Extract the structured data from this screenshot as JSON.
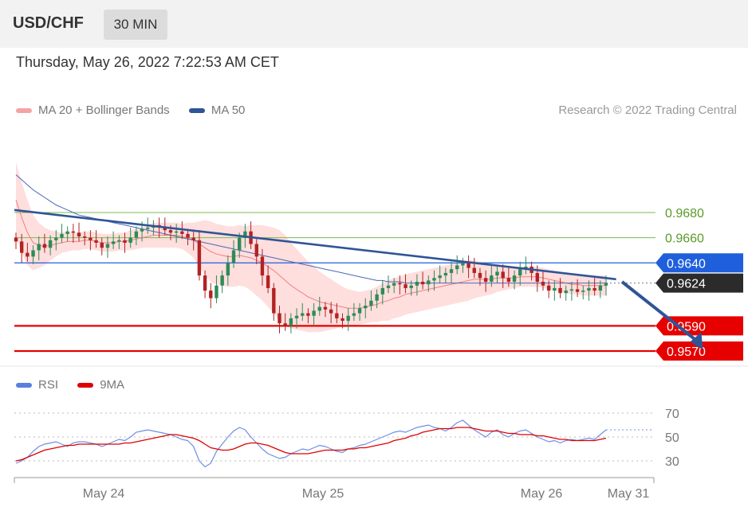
{
  "header": {
    "symbol": "USD/CHF",
    "timeframe": "30 MIN",
    "datetime": "Thursday, May 26, 2022 7:22:53 AM CET"
  },
  "price_legend": [
    {
      "label": "MA 20 + Bollinger Bands",
      "color": "#f08080"
    },
    {
      "label": "MA 50",
      "color": "#2f5597"
    }
  ],
  "rsi_legend": [
    {
      "label": "RSI",
      "color": "#5b7fde"
    },
    {
      "label": "9MA",
      "color": "#e00000"
    }
  ],
  "copyright": "Research © 2022 Trading Central",
  "colors": {
    "up": "#2e8b57",
    "down": "#b22222",
    "resistance": "#7cbb4b",
    "pivot": "#1f5fdc",
    "support": "#e60000",
    "trend": "#2f5597",
    "current": "#2b2b2b",
    "band": "#ffdede"
  },
  "chart_data": [
    {
      "type": "candlestick",
      "ylim": [
        0.9565,
        0.971
      ],
      "x_ticks": [
        "May 24",
        "May 25",
        "May 26",
        "May 31"
      ],
      "levels": [
        {
          "value": 0.968,
          "label": "0.9680",
          "kind": "resistance"
        },
        {
          "value": 0.966,
          "label": "0.9660",
          "kind": "resistance"
        },
        {
          "value": 0.964,
          "label": "0.9640",
          "kind": "pivot"
        },
        {
          "value": 0.9624,
          "label": "0.9624",
          "kind": "current"
        },
        {
          "value": 0.959,
          "label": "0.9590",
          "kind": "support"
        },
        {
          "value": 0.957,
          "label": "0.9570",
          "kind": "support"
        }
      ],
      "trendline": {
        "from": [
          0,
          0.9682
        ],
        "to": [
          101,
          0.9627
        ]
      },
      "forecast_arrow": {
        "from": [
          103,
          0.9625
        ],
        "to": [
          116,
          0.9571
        ]
      },
      "closes": [
        0.9657,
        0.9648,
        0.9645,
        0.965,
        0.9655,
        0.9652,
        0.9658,
        0.966,
        0.9663,
        0.9665,
        0.9664,
        0.9661,
        0.966,
        0.9658,
        0.9656,
        0.9652,
        0.9655,
        0.9657,
        0.9658,
        0.9656,
        0.966,
        0.9665,
        0.9667,
        0.9668,
        0.967,
        0.9668,
        0.9666,
        0.9664,
        0.9665,
        0.9663,
        0.966,
        0.9658,
        0.963,
        0.9618,
        0.9612,
        0.9622,
        0.963,
        0.964,
        0.965,
        0.966,
        0.9665,
        0.9655,
        0.9645,
        0.963,
        0.962,
        0.96,
        0.9592,
        0.959,
        0.9596,
        0.9598,
        0.96,
        0.9598,
        0.9602,
        0.9605,
        0.9603,
        0.96,
        0.9596,
        0.9594,
        0.9598,
        0.96,
        0.9604,
        0.9606,
        0.961,
        0.9615,
        0.962,
        0.9622,
        0.9624,
        0.9623,
        0.962,
        0.9622,
        0.9625,
        0.9623,
        0.9626,
        0.9628,
        0.963,
        0.9632,
        0.9635,
        0.9638,
        0.964,
        0.9636,
        0.9632,
        0.9628,
        0.9625,
        0.963,
        0.9633,
        0.9628,
        0.9625,
        0.963,
        0.9635,
        0.9637,
        0.9632,
        0.9625,
        0.9622,
        0.9618,
        0.962,
        0.9616,
        0.9618,
        0.9619,
        0.9617,
        0.9618,
        0.962,
        0.9618,
        0.9622,
        0.9624
      ],
      "ma20": [
        0.969,
        0.9676,
        0.9664,
        0.9656,
        0.9654,
        0.9653,
        0.9654,
        0.9655,
        0.9656,
        0.9657,
        0.9657,
        0.9657,
        0.9658,
        0.9658,
        0.9657,
        0.9656,
        0.9656,
        0.9656,
        0.9657,
        0.9657,
        0.9658,
        0.9659,
        0.966,
        0.9661,
        0.9662,
        0.9662,
        0.9662,
        0.9662,
        0.9662,
        0.9661,
        0.966,
        0.9658,
        0.9655,
        0.9652,
        0.9649,
        0.9647,
        0.9646,
        0.9645,
        0.9645,
        0.9646,
        0.9645,
        0.9644,
        0.9642,
        0.964,
        0.9637,
        0.9634,
        0.963,
        0.9626,
        0.9622,
        0.9619,
        0.9616,
        0.9613,
        0.9611,
        0.9609,
        0.9608,
        0.9607,
        0.9606,
        0.9605,
        0.9604,
        0.9604,
        0.9604,
        0.9605,
        0.9606,
        0.9607,
        0.9609,
        0.961,
        0.9612,
        0.9613,
        0.9615,
        0.9616,
        0.9617,
        0.9618,
        0.9619,
        0.962,
        0.9621,
        0.9622,
        0.9623,
        0.9624,
        0.9625,
        0.9626,
        0.9627,
        0.9627,
        0.9627,
        0.9627,
        0.9628,
        0.9628,
        0.9628,
        0.9628,
        0.9629,
        0.9629,
        0.9629,
        0.9629,
        0.9628,
        0.9627,
        0.9626,
        0.9625,
        0.9624,
        0.9623,
        0.9623,
        0.9622,
        0.9622,
        0.9622,
        0.9622,
        0.9622
      ],
      "ma50": [
        0.971,
        0.9706,
        0.9702,
        0.9698,
        0.9695,
        0.9692,
        0.9689,
        0.9686,
        0.9684,
        0.9682,
        0.968,
        0.9678,
        0.9677,
        0.9676,
        0.9675,
        0.9674,
        0.9673,
        0.9672,
        0.9671,
        0.967,
        0.9669,
        0.9668,
        0.9667,
        0.9666,
        0.9665,
        0.9664,
        0.9663,
        0.9662,
        0.9661,
        0.966,
        0.9659,
        0.9658,
        0.9657,
        0.9656,
        0.9655,
        0.9654,
        0.9653,
        0.9652,
        0.9651,
        0.965,
        0.9649,
        0.9648,
        0.9647,
        0.9646,
        0.9645,
        0.9644,
        0.9643,
        0.9642,
        0.9641,
        0.964,
        0.9639,
        0.9638,
        0.9637,
        0.9636,
        0.9635,
        0.9634,
        0.9633,
        0.9632,
        0.9631,
        0.963,
        0.9629,
        0.9628,
        0.9627,
        0.9626,
        0.9626,
        0.9625,
        0.9625,
        0.9625,
        0.9624,
        0.9624,
        0.9624,
        0.9624,
        0.9624,
        0.9624,
        0.9624,
        0.9624,
        0.9624,
        0.9624,
        0.9624,
        0.9624,
        0.9624,
        0.9624,
        0.9624,
        0.9624,
        0.9624,
        0.9624,
        0.9624,
        0.9624,
        0.9624,
        0.9624,
        0.9624,
        0.9624,
        0.9624,
        0.9624,
        0.9624,
        0.9624,
        0.9624,
        0.9624,
        0.9624,
        0.9624,
        0.9624,
        0.9624,
        0.9624,
        0.9624
      ],
      "band_width": [
        0.003,
        0.0028,
        0.0026,
        0.0022,
        0.0018,
        0.0015,
        0.0012,
        0.001,
        0.0008,
        0.0008,
        0.0007,
        0.0007,
        0.0007,
        0.0007,
        0.0007,
        0.0007,
        0.0007,
        0.0007,
        0.0007,
        0.0007,
        0.0008,
        0.0008,
        0.0008,
        0.0009,
        0.001,
        0.001,
        0.001,
        0.001,
        0.001,
        0.001,
        0.0012,
        0.0014,
        0.0018,
        0.0022,
        0.0024,
        0.0024,
        0.0024,
        0.0024,
        0.0024,
        0.0024,
        0.0024,
        0.0026,
        0.0028,
        0.003,
        0.0032,
        0.0034,
        0.0036,
        0.0036,
        0.0034,
        0.0032,
        0.003,
        0.0028,
        0.0026,
        0.0024,
        0.0022,
        0.002,
        0.0018,
        0.0016,
        0.0015,
        0.0014,
        0.0013,
        0.0013,
        0.0013,
        0.0014,
        0.0015,
        0.0016,
        0.0016,
        0.0016,
        0.0016,
        0.0016,
        0.0016,
        0.0016,
        0.0016,
        0.0016,
        0.0016,
        0.0016,
        0.0016,
        0.0016,
        0.0016,
        0.0016,
        0.0015,
        0.0014,
        0.0013,
        0.0012,
        0.0011,
        0.001,
        0.0009,
        0.0008,
        0.0008,
        0.0008,
        0.0008,
        0.0008,
        0.0008,
        0.0008,
        0.0008,
        0.0008,
        0.0008,
        0.0008,
        0.0008,
        0.0008,
        0.0008,
        0.0008,
        0.0008,
        0.0008
      ]
    },
    {
      "type": "line",
      "ylim": [
        20,
        80
      ],
      "y_ticks": [
        70,
        50,
        30
      ],
      "rsi": [
        28,
        30,
        33,
        38,
        42,
        44,
        45,
        46,
        44,
        42,
        45,
        46,
        46,
        45,
        44,
        42,
        44,
        46,
        48,
        47,
        50,
        54,
        55,
        56,
        55,
        54,
        53,
        52,
        50,
        48,
        47,
        42,
        30,
        25,
        28,
        38,
        44,
        50,
        55,
        58,
        56,
        50,
        45,
        40,
        36,
        34,
        32,
        33,
        36,
        38,
        40,
        39,
        41,
        43,
        42,
        40,
        38,
        37,
        40,
        41,
        43,
        44,
        46,
        48,
        50,
        52,
        54,
        55,
        54,
        56,
        58,
        59,
        60,
        58,
        57,
        55,
        58,
        62,
        64,
        60,
        56,
        53,
        50,
        54,
        56,
        52,
        50,
        53,
        55,
        56,
        53,
        50,
        48,
        46,
        47,
        45,
        47,
        48,
        47,
        48,
        49,
        48,
        52,
        56
      ],
      "ma9": [
        30,
        31,
        33,
        35,
        37,
        39,
        40,
        41,
        42,
        43,
        43,
        44,
        44,
        44,
        44,
        44,
        44,
        44,
        44,
        45,
        45,
        46,
        47,
        48,
        49,
        50,
        51,
        52,
        52,
        51,
        50,
        49,
        47,
        44,
        41,
        40,
        39,
        39,
        40,
        42,
        44,
        45,
        45,
        44,
        43,
        41,
        39,
        37,
        36,
        36,
        36,
        36,
        37,
        38,
        39,
        39,
        39,
        39,
        40,
        40,
        41,
        41,
        42,
        43,
        44,
        45,
        47,
        48,
        49,
        51,
        52,
        54,
        55,
        56,
        57,
        57,
        57,
        58,
        58,
        58,
        57,
        56,
        55,
        55,
        55,
        54,
        53,
        53,
        52,
        52,
        52,
        51,
        51,
        50,
        49,
        48,
        48,
        47,
        47,
        47,
        47,
        47,
        48,
        49
      ]
    }
  ]
}
